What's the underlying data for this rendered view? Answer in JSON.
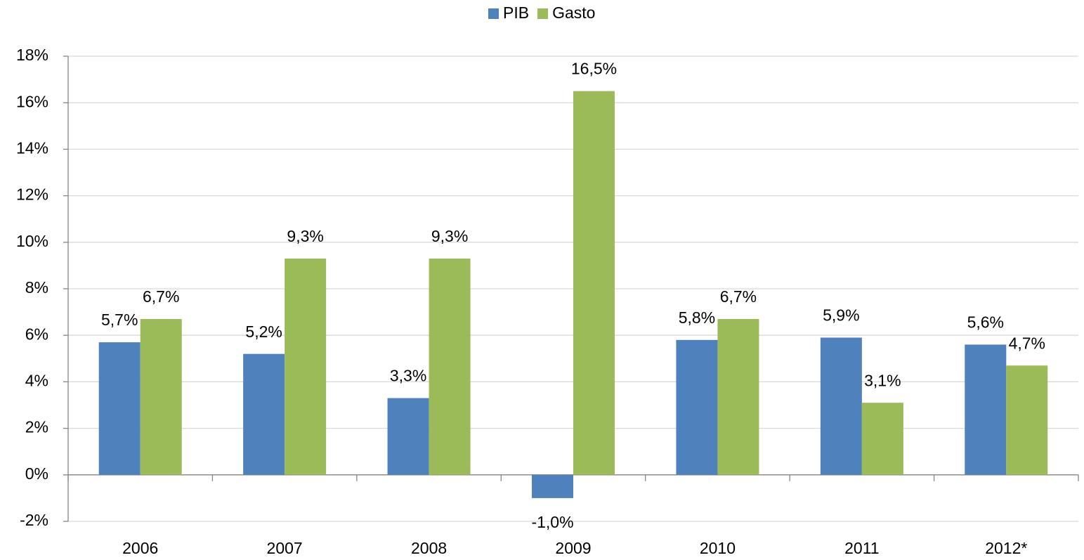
{
  "chart_data": {
    "type": "bar",
    "categories": [
      "2006",
      "2007",
      "2008",
      "2009",
      "2010",
      "2011",
      "2012*"
    ],
    "series": [
      {
        "name": "PIB",
        "color": "#4f81bd",
        "values": [
          5.7,
          5.2,
          3.3,
          -1.0,
          5.8,
          5.9,
          5.6
        ],
        "value_labels": [
          "5,7%",
          "5,2%",
          "3,3%",
          "-1,0%",
          "5,8%",
          "5,9%",
          "5,6%"
        ]
      },
      {
        "name": "Gasto",
        "color": "#9bbb59",
        "values": [
          6.7,
          9.3,
          9.3,
          16.5,
          6.7,
          3.1,
          4.7
        ],
        "value_labels": [
          "6,7%",
          "9,3%",
          "9,3%",
          "16,5%",
          "6,7%",
          "3,1%",
          "4,7%"
        ]
      }
    ],
    "ylim": [
      -2,
      18
    ],
    "yticks": [
      {
        "value": -2,
        "label": "-2%"
      },
      {
        "value": 0,
        "label": "0%"
      },
      {
        "value": 2,
        "label": "2%"
      },
      {
        "value": 4,
        "label": "4%"
      },
      {
        "value": 6,
        "label": "6%"
      },
      {
        "value": 8,
        "label": "8%"
      },
      {
        "value": 10,
        "label": "10%"
      },
      {
        "value": 12,
        "label": "12%"
      },
      {
        "value": 14,
        "label": "14%"
      },
      {
        "value": 16,
        "label": "16%"
      },
      {
        "value": 18,
        "label": "18%"
      }
    ],
    "grid": true,
    "legend": "top"
  }
}
